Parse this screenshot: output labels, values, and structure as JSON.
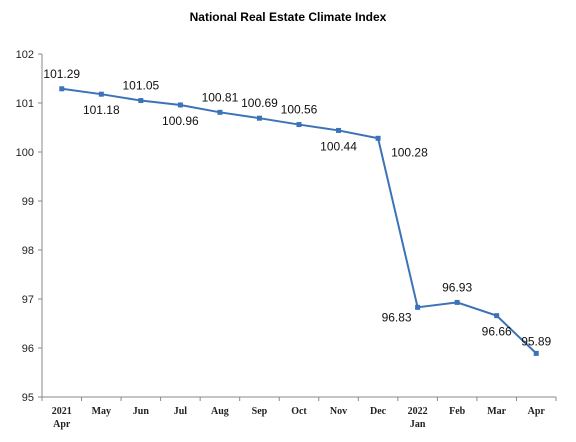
{
  "chart_data": {
    "type": "line",
    "title": "National Real Estate  Climate Index",
    "xlabel": "",
    "ylabel": "",
    "categories": [
      [
        "2021",
        "Apr"
      ],
      [
        "May"
      ],
      [
        "Jun"
      ],
      [
        "Jul"
      ],
      [
        "Aug"
      ],
      [
        "Sep"
      ],
      [
        "Oct"
      ],
      [
        "Nov"
      ],
      [
        "Dec"
      ],
      [
        "2022",
        "Jan"
      ],
      [
        "Feb"
      ],
      [
        "Mar"
      ],
      [
        "Apr"
      ]
    ],
    "series": [
      {
        "values": [
          101.29,
          101.18,
          101.05,
          100.96,
          100.81,
          100.69,
          100.56,
          100.44,
          100.28,
          96.83,
          96.93,
          96.66,
          95.89
        ],
        "labels": [
          "101.29",
          "101.18",
          "101.05",
          "100.96",
          "100.81",
          "100.69",
          "100.56",
          "100.44",
          "100.28",
          "96.83",
          "96.93",
          "96.66",
          "95.89"
        ]
      }
    ],
    "ylim": [
      95,
      102
    ],
    "yticks": [
      "95",
      "96",
      "97",
      "98",
      "99",
      "100",
      "101",
      "102"
    ],
    "grid": false,
    "legend": "none",
    "line_color": "#3c72b8",
    "axis_color": "#888888"
  }
}
